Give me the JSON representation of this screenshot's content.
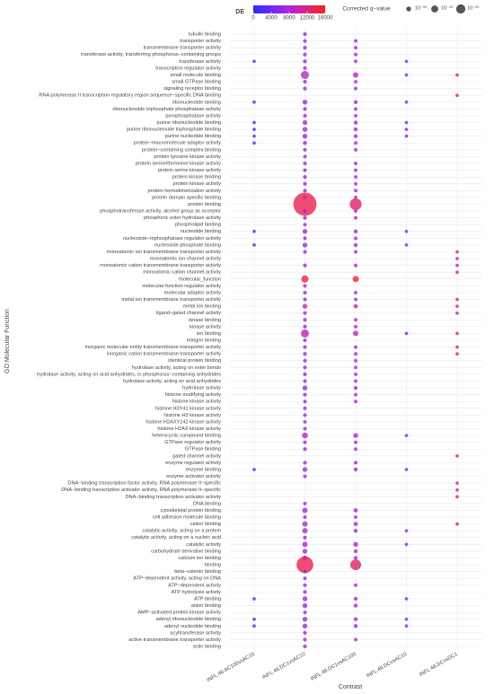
{
  "chart_data": {
    "type": "dotplot",
    "x_label": "Contrast",
    "y_label": "GO Molecular Function",
    "y_categories": [
      "tubulin binding",
      "transporter activity",
      "transmembrane transporter activity",
      "transferase activity, transferring phosphorus−containing groups",
      "transferase activity",
      "transcription regulator activity",
      "small molecule binding",
      "small GTPase binding",
      "signaling receptor binding",
      "RNA polymerase II transcription regulatory region sequence−specific DNA binding",
      "ribonucleotide binding",
      "ribonucleoside triphosphate phosphatase activity",
      "pyrophosphatase activity",
      "purine ribonucleotide binding",
      "purine ribonucleoside triphosphate binding",
      "purine nucleotide binding",
      "protein−macromolecule adaptor activity",
      "protein−containing complex binding",
      "protein tyrosine kinase activity",
      "protein serine/threonine kinase activity",
      "protein serine kinase activity",
      "protein kinase binding",
      "protein kinase activity",
      "protein homodimerization activity",
      "protein domain specific binding",
      "protein binding",
      "phosphotransferase activity, alcohol group as acceptor",
      "phosphoric ester hydrolase activity",
      "phospholipid binding",
      "nucleotide binding",
      "nucleoside−triphosphatase regulator activity",
      "nucleoside phosphate binding",
      "monoatomic ion transmembrane transporter activity",
      "monoatomic ion channel activity",
      "monoatomic cation transmembrane transporter activity",
      "monoatomic cation channel activity",
      "molecular_function",
      "molecular function regulator activity",
      "molecular adaptor activity",
      "metal ion transmembrane transporter activity",
      "metal ion binding",
      "ligand−gated channel activity",
      "kinase binding",
      "kinase activity",
      "ion binding",
      "integrin binding",
      "inorganic molecular entity transmembrane transporter activity",
      "inorganic cation transmembrane transporter activity",
      "identical protein binding",
      "hydrolase activity, acting on ester bonds",
      "hydrolase activity, acting on acid anhydrides, in phosphorus−containing anhydrides",
      "hydrolase activity, acting on acid anhydrides",
      "hydrolase activity",
      "histone modifying activity",
      "histone kinase activity",
      "histone H3Y41 kinase activity",
      "histone H3 kinase activity",
      "histone H2AXY142 kinase activity",
      "histone H2AX kinase activity",
      "heterocyclic compound binding",
      "GTPase regulator activity",
      "GTPase binding",
      "gated channel activity",
      "enzyme regulator activity",
      "enzyme binding",
      "enzyme activator activity",
      "DNA−binding transcription factor activity, RNA polymerase II−specific",
      "DNA−binding transcription activator activity, RNA polymerase II−specific",
      "DNA−binding transcription activator activity",
      "DNA binding",
      "cytoskeletal protein binding",
      "cell adhesion molecule binding",
      "cation binding",
      "catalytic activity, acting on a protein",
      "catalytic activity, acting on a nucleic acid",
      "catalytic activity",
      "carbohydrate derivative binding",
      "calcium ion binding",
      "binding",
      "beta−catenin binding",
      "ATP−dependent activity, acting on DNA",
      "ATP−dependent activity",
      "ATP hydrolysis activity",
      "ATP binding",
      "anion binding",
      "AMP−activated protein kinase activity",
      "adenyl ribonucleotide binding",
      "adenyl nucleotide binding",
      "acyltransferase activity",
      "active transmembrane transporter activity",
      "actin binding"
    ],
    "series": [
      {
        "name": "INFL.48.AC100vsAC10",
        "q": [
          null,
          null,
          null,
          null,
          1e-06,
          null,
          null,
          null,
          null,
          null,
          1e-06,
          null,
          null,
          1e-06,
          1e-06,
          1e-06,
          1e-06,
          null,
          null,
          null,
          null,
          null,
          null,
          null,
          null,
          null,
          null,
          null,
          null,
          1e-06,
          null,
          1e-06,
          null,
          null,
          null,
          null,
          null,
          null,
          null,
          null,
          null,
          null,
          null,
          null,
          null,
          null,
          null,
          null,
          null,
          null,
          null,
          null,
          null,
          null,
          null,
          null,
          null,
          null,
          null,
          null,
          null,
          null,
          null,
          null,
          1e-06,
          null,
          null,
          null,
          null,
          null,
          null,
          null,
          null,
          null,
          null,
          null,
          null,
          null,
          null,
          null,
          null,
          null,
          null,
          1e-06,
          null,
          null,
          1e-06,
          1e-06,
          null,
          null,
          null
        ],
        "de": [
          null,
          null,
          null,
          null,
          3000,
          null,
          null,
          null,
          null,
          null,
          3000,
          null,
          null,
          3000,
          3000,
          3000,
          3000,
          null,
          null,
          null,
          null,
          null,
          null,
          null,
          null,
          null,
          null,
          null,
          null,
          3000,
          null,
          3000,
          null,
          null,
          null,
          null,
          null,
          null,
          null,
          null,
          null,
          null,
          null,
          null,
          null,
          null,
          null,
          null,
          null,
          null,
          null,
          null,
          null,
          null,
          null,
          null,
          null,
          null,
          null,
          null,
          null,
          null,
          null,
          null,
          3000,
          null,
          null,
          null,
          null,
          null,
          null,
          null,
          null,
          null,
          null,
          null,
          null,
          null,
          null,
          null,
          null,
          null,
          null,
          3000,
          null,
          null,
          3000,
          3000,
          null,
          null,
          null
        ]
      },
      {
        "name": "INFL.48.DC1vsAC10",
        "q": [
          1e-10,
          1e-10,
          1e-10,
          1e-10,
          1e-12,
          1e-10,
          1e-50,
          1e-10,
          1e-10,
          null,
          1e-20,
          1e-10,
          1e-10,
          1e-20,
          1e-20,
          1e-20,
          1e-12,
          1e-10,
          1e-08,
          1e-10,
          1e-10,
          1e-10,
          1e-10,
          1e-10,
          1e-10,
          1e-190,
          1e-10,
          1e-10,
          1e-08,
          1e-20,
          1e-10,
          1e-20,
          1e-10,
          null,
          1e-10,
          null,
          1e-42,
          1e-10,
          1e-10,
          1e-10,
          1e-20,
          1e-10,
          1e-10,
          1e-10,
          1e-50,
          1e-08,
          1e-10,
          1e-10,
          1e-10,
          1e-10,
          1e-10,
          1e-10,
          1e-20,
          1e-10,
          1e-08,
          1e-08,
          1e-08,
          1e-08,
          1e-08,
          1e-30,
          1e-10,
          1e-10,
          null,
          1e-10,
          1e-20,
          1e-10,
          null,
          null,
          null,
          1e-08,
          1e-25,
          1e-10,
          1e-25,
          1e-25,
          1e-10,
          1e-25,
          1e-20,
          1e-20,
          1e-130,
          1e-08,
          1e-08,
          1e-10,
          1e-10,
          1e-20,
          1e-20,
          1e-08,
          1e-20,
          1e-20,
          1e-10,
          1e-10,
          1e-10
        ],
        "de": [
          7000,
          7000,
          7000,
          7000,
          7000,
          7000,
          9000,
          7000,
          7000,
          null,
          7500,
          7000,
          7000,
          7500,
          7500,
          7500,
          7000,
          7000,
          6500,
          7000,
          7000,
          7000,
          7000,
          7000,
          7000,
          14000,
          7000,
          7000,
          6500,
          7500,
          7000,
          7500,
          7000,
          null,
          7000,
          null,
          15000,
          7000,
          7000,
          7000,
          10000,
          7000,
          7000,
          7000,
          10000,
          6500,
          7000,
          7000,
          7000,
          7000,
          7000,
          7000,
          7500,
          7000,
          6500,
          6500,
          6500,
          6500,
          6500,
          9000,
          7000,
          7000,
          null,
          7000,
          7500,
          7000,
          null,
          null,
          null,
          6500,
          8000,
          7000,
          8000,
          8000,
          7000,
          8000,
          7500,
          7500,
          14000,
          6500,
          6500,
          7000,
          7000,
          7500,
          7500,
          6500,
          7500,
          7500,
          7000,
          7000,
          7000
        ]
      },
      {
        "name": "INFL.48.DC1vsAC100",
        "q": [
          null,
          1e-08,
          1e-08,
          1e-08,
          1e-08,
          null,
          1e-25,
          1e-08,
          1e-08,
          null,
          1e-12,
          1e-08,
          1e-08,
          1e-12,
          1e-12,
          1e-12,
          1e-08,
          1e-08,
          null,
          1e-08,
          1e-08,
          1e-08,
          1e-08,
          1e-08,
          1e-08,
          1e-85,
          1e-08,
          1e-08,
          null,
          1e-12,
          1e-08,
          1e-12,
          1e-08,
          null,
          1e-08,
          null,
          1e-33,
          null,
          1e-08,
          1e-08,
          1e-15,
          null,
          1e-08,
          1e-08,
          1e-25,
          null,
          1e-08,
          1e-08,
          1e-08,
          1e-08,
          1e-08,
          1e-08,
          1e-12,
          1e-08,
          1e-08,
          null,
          null,
          null,
          null,
          1e-20,
          1e-08,
          1e-08,
          null,
          1e-08,
          1e-12,
          null,
          null,
          null,
          null,
          null,
          1e-15,
          1e-08,
          1e-15,
          1e-12,
          null,
          1e-20,
          1e-12,
          1e-12,
          1e-75,
          null,
          null,
          1e-08,
          null,
          1e-12,
          1e-12,
          null,
          1e-12,
          1e-12,
          null,
          1e-08,
          null
        ],
        "de": [
          null,
          7500,
          7500,
          7500,
          7500,
          null,
          9000,
          7500,
          7500,
          null,
          7500,
          7500,
          7500,
          7500,
          7500,
          7500,
          7500,
          7500,
          null,
          7500,
          7500,
          7500,
          7500,
          7500,
          7500,
          13000,
          7500,
          7500,
          null,
          7500,
          7500,
          7500,
          7500,
          null,
          7500,
          null,
          15000,
          null,
          7500,
          7500,
          10000,
          null,
          7500,
          7500,
          9000,
          null,
          7500,
          7500,
          7500,
          7500,
          7500,
          7500,
          7500,
          7500,
          7500,
          null,
          null,
          null,
          null,
          7500,
          7500,
          7500,
          null,
          7500,
          7500,
          null,
          null,
          null,
          null,
          null,
          7500,
          7500,
          7500,
          7500,
          null,
          7500,
          7500,
          7500,
          13000,
          null,
          null,
          7500,
          null,
          7500,
          7500,
          null,
          7500,
          7500,
          null,
          7500,
          null
        ]
      },
      {
        "name": "INFL.48.DCvsAC10",
        "q": [
          null,
          null,
          null,
          null,
          1e-06,
          null,
          1e-06,
          null,
          null,
          null,
          1e-06,
          null,
          null,
          1e-06,
          1e-06,
          1e-06,
          null,
          null,
          null,
          null,
          null,
          null,
          null,
          null,
          null,
          null,
          null,
          null,
          null,
          1e-06,
          null,
          1e-06,
          null,
          null,
          null,
          null,
          null,
          null,
          null,
          null,
          null,
          null,
          null,
          null,
          1e-06,
          null,
          null,
          null,
          null,
          null,
          null,
          null,
          null,
          null,
          null,
          null,
          null,
          null,
          null,
          1e-06,
          null,
          null,
          null,
          null,
          1e-06,
          null,
          null,
          null,
          null,
          null,
          null,
          null,
          null,
          1e-06,
          null,
          1e-06,
          null,
          null,
          null,
          null,
          null,
          null,
          null,
          1e-06,
          null,
          null,
          1e-06,
          1e-06,
          null,
          null,
          null
        ],
        "de": [
          null,
          null,
          null,
          null,
          6000,
          null,
          6000,
          null,
          null,
          null,
          6000,
          null,
          null,
          6000,
          6000,
          6000,
          null,
          null,
          null,
          null,
          null,
          null,
          null,
          null,
          null,
          null,
          null,
          null,
          null,
          6000,
          null,
          6000,
          null,
          null,
          null,
          null,
          null,
          null,
          null,
          null,
          null,
          null,
          null,
          null,
          6000,
          null,
          null,
          null,
          null,
          null,
          null,
          null,
          null,
          null,
          null,
          null,
          null,
          null,
          null,
          6000,
          null,
          null,
          null,
          null,
          6000,
          null,
          null,
          null,
          null,
          null,
          null,
          null,
          null,
          6000,
          null,
          6000,
          null,
          null,
          null,
          null,
          null,
          null,
          null,
          6000,
          null,
          null,
          6000,
          6000,
          null,
          null,
          null
        ]
      },
      {
        "name": "INFL.48.DCvsDC1",
        "q": [
          null,
          null,
          null,
          null,
          null,
          null,
          1e-06,
          null,
          null,
          1e-06,
          null,
          null,
          null,
          null,
          null,
          null,
          null,
          null,
          null,
          null,
          null,
          null,
          null,
          null,
          null,
          null,
          null,
          null,
          null,
          null,
          null,
          null,
          1e-06,
          1e-06,
          1e-06,
          1e-06,
          null,
          null,
          null,
          1e-06,
          1e-06,
          1e-06,
          null,
          null,
          1e-06,
          null,
          1e-06,
          1e-06,
          null,
          null,
          null,
          null,
          null,
          null,
          null,
          null,
          null,
          null,
          null,
          null,
          null,
          null,
          1e-06,
          null,
          null,
          null,
          1e-06,
          1e-06,
          1e-06,
          null,
          null,
          null,
          1e-06,
          null,
          null,
          null,
          null,
          null,
          null,
          null,
          null,
          null,
          null,
          null,
          null,
          null,
          null,
          null,
          null,
          null,
          null
        ],
        "de": [
          null,
          null,
          null,
          null,
          null,
          null,
          11000,
          null,
          null,
          11000,
          null,
          null,
          null,
          null,
          null,
          null,
          null,
          null,
          null,
          null,
          null,
          null,
          null,
          null,
          null,
          null,
          null,
          null,
          null,
          null,
          null,
          null,
          11000,
          11000,
          11000,
          11000,
          null,
          null,
          null,
          11000,
          11000,
          11000,
          null,
          null,
          11000,
          null,
          11000,
          11000,
          null,
          null,
          null,
          null,
          null,
          null,
          null,
          null,
          null,
          null,
          null,
          null,
          null,
          null,
          11000,
          null,
          null,
          null,
          11000,
          11000,
          11000,
          null,
          null,
          null,
          11000,
          null,
          null,
          null,
          null,
          null,
          null,
          null,
          null,
          null,
          null,
          null,
          null,
          null,
          null,
          null,
          null,
          null,
          null
        ]
      }
    ],
    "colorbar": {
      "title": "DE",
      "lim": [
        0,
        16000
      ],
      "ticks": [
        0,
        4000,
        8000,
        12000,
        16000
      ],
      "colors": [
        "#2b2bff",
        "#b025e0",
        "#ff2020"
      ]
    },
    "size_legend": {
      "title": "Corrected q−value",
      "entries": [
        {
          "value": 1e-20,
          "label": "10⁻²⁰"
        },
        {
          "value": 1e-40,
          "label": "10⁻⁴⁰"
        },
        {
          "value": 1e-60,
          "label": "10⁻⁶⁰"
        }
      ]
    },
    "grid": true
  }
}
